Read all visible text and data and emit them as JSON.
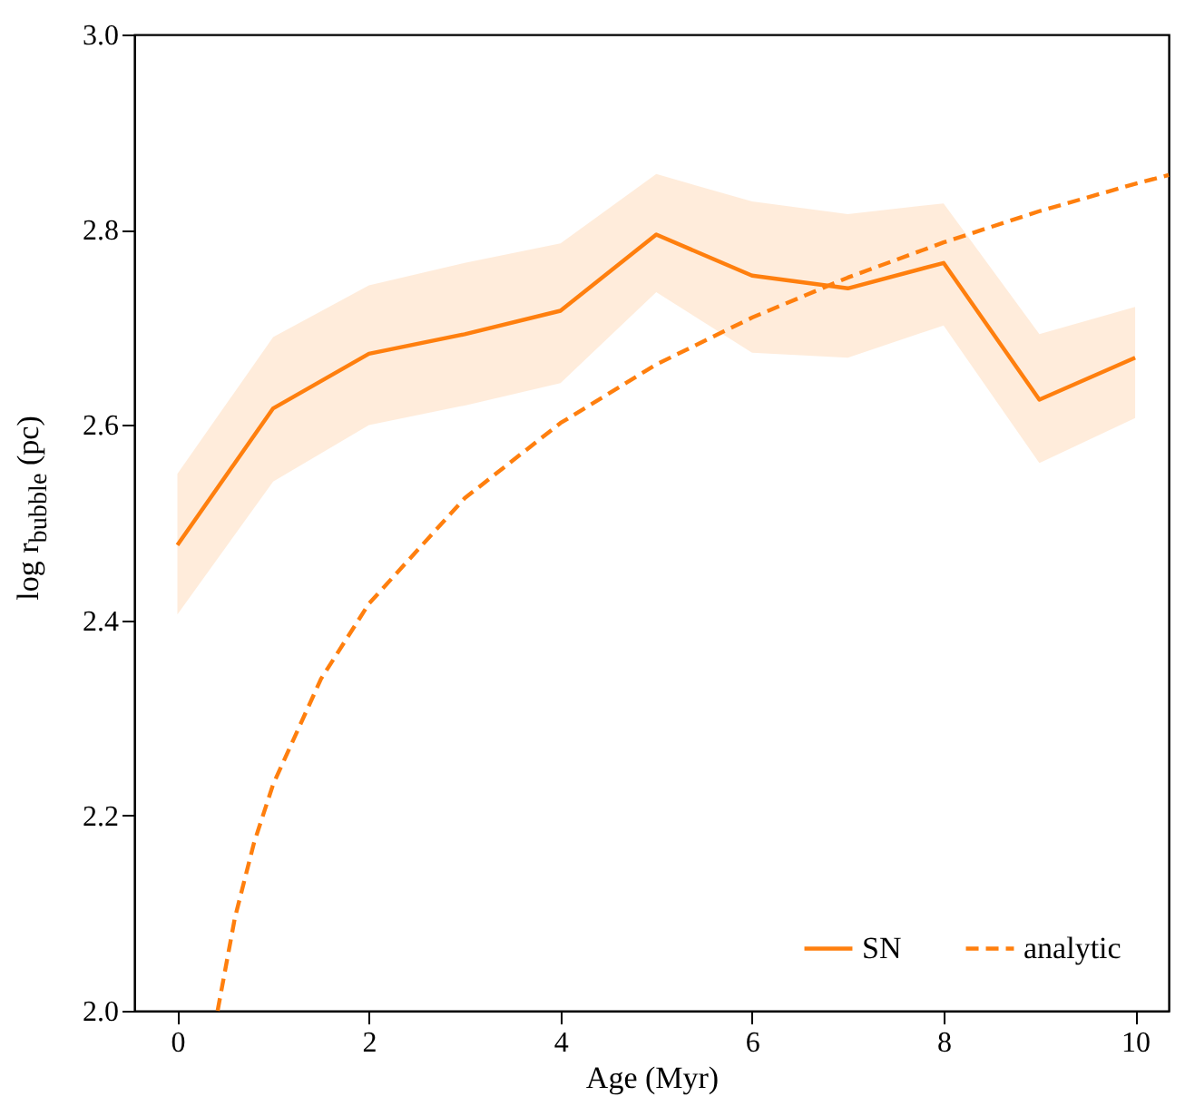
{
  "chart_data": {
    "type": "line",
    "xlabel": "Age (Myr)",
    "ylabel": "log r$_{bubble}$ (pc)",
    "xlim": [
      -0.45,
      10.35
    ],
    "ylim": [
      2.0,
      3.0
    ],
    "xticks": [
      0,
      2,
      4,
      6,
      8,
      10
    ],
    "yticks": [
      {
        "value": 2,
        "label": "2.0"
      },
      2.2,
      2.4,
      2.6,
      2.8,
      {
        "value": 3,
        "label": "3.0"
      }
    ],
    "legend": "bottom right",
    "grid": false,
    "series": [
      {
        "name": "SN",
        "color": "#ff7f0e",
        "line_style": "solid",
        "x": [
          0,
          1,
          2,
          3,
          4,
          5,
          6,
          7,
          8,
          9,
          10
        ],
        "values": [
          2.477,
          2.617,
          2.673,
          2.693,
          2.717,
          2.795,
          2.753,
          2.74,
          2.766,
          2.626,
          2.669
        ],
        "lower": [
          2.406,
          2.542,
          2.6,
          2.62,
          2.643,
          2.736,
          2.674,
          2.669,
          2.702,
          2.561,
          2.607
        ],
        "upper": [
          2.55,
          2.69,
          2.743,
          2.766,
          2.786,
          2.857,
          2.829,
          2.816,
          2.827,
          2.693,
          2.721
        ]
      },
      {
        "name": "analytic",
        "color": "#ff7f0e",
        "line_style": "dashed",
        "x": [
          0.42,
          0.6,
          0.8,
          1,
          1.5,
          2,
          3,
          4,
          5,
          6,
          7,
          8,
          9,
          10,
          10.35
        ],
        "values": [
          2.0,
          2.095,
          2.172,
          2.232,
          2.34,
          2.417,
          2.525,
          2.602,
          2.662,
          2.71,
          2.751,
          2.787,
          2.819,
          2.847,
          2.856
        ]
      }
    ]
  }
}
